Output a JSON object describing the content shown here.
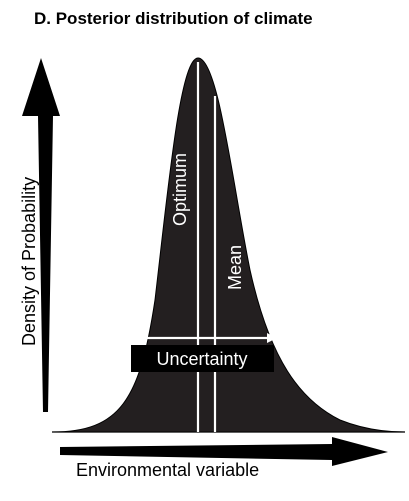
{
  "figure": {
    "title": "D. Posterior distribution of climate",
    "y_axis_label": "Density of Probability",
    "x_axis_label": "Environmental variable",
    "optimum_label": "Optimum",
    "mean_label": "Mean",
    "uncertainty_label": "Uncertainty"
  },
  "colors": {
    "background": "#ffffff",
    "curve_fill": "#231f20",
    "markers": "#ffffff",
    "text": "#000000"
  }
}
